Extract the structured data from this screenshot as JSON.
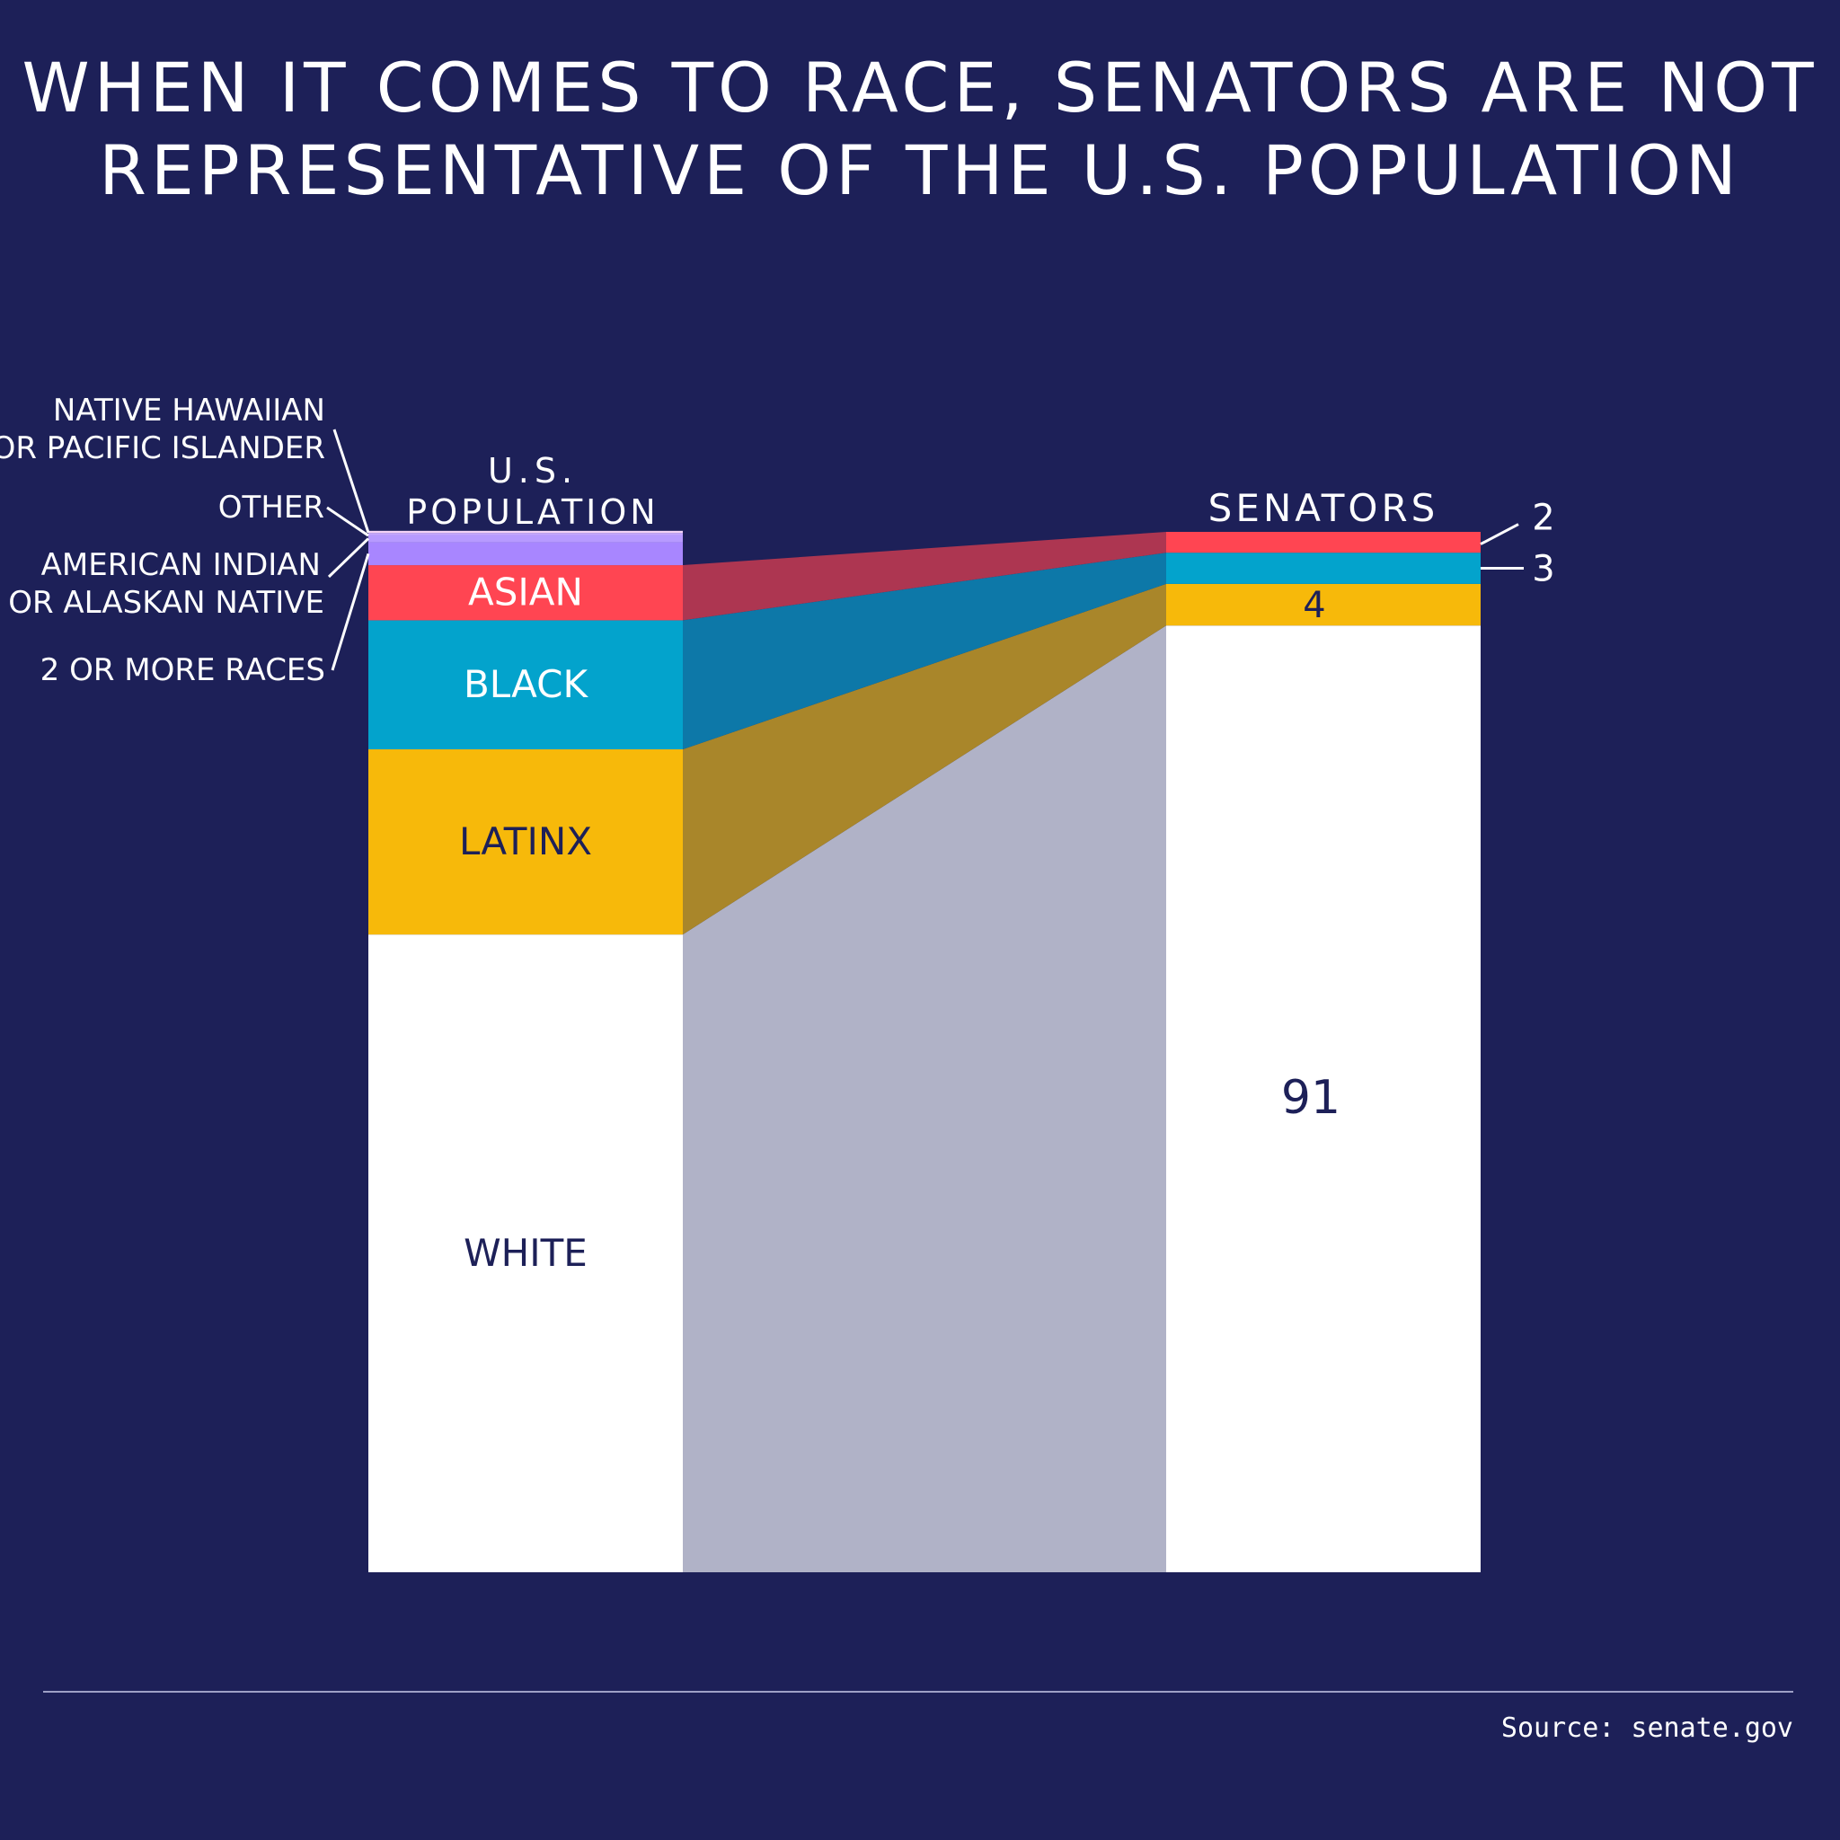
{
  "title": {
    "line1": "WHEN IT COMES TO RACE, SENATORS ARE NOT",
    "line2": "REPRESENTATIVE OF THE U.S. POPULATION"
  },
  "source": "Source: senate.gov",
  "colors": {
    "background": "#1d2058",
    "white": "#ffffff",
    "latinx": "#f7b90a",
    "black": "#03a3cc",
    "asian": "#ff4552",
    "american_indian": "#a886ff",
    "other": "#c7a8ff",
    "native_hawaiian": "#f3d3f6",
    "flow_white": "#b0b2c7",
    "flow_latinx": "#a9862a",
    "flow_black": "#0d78a8",
    "flow_asian": "#ad3651"
  },
  "chart_data": {
    "type": "bar",
    "stacked": true,
    "categories": [
      "U.S. POPULATION",
      "SENATORS"
    ],
    "category_labels": [
      "U.S.",
      "POPULATION",
      "SENATORS"
    ],
    "ylim": [
      0,
      100
    ],
    "grid": false,
    "legend": "labels on bars and left-side callouts",
    "series": [
      {
        "name": "WHITE",
        "values": [
          61.3,
          91
        ],
        "color": "#ffffff",
        "label_color": "#1d2058"
      },
      {
        "name": "LATINX",
        "values": [
          17.8,
          4
        ],
        "color": "#f7b90a",
        "label_color": "#1d2058"
      },
      {
        "name": "BLACK",
        "values": [
          12.4,
          3
        ],
        "color": "#03a3cc",
        "label_color": "#ffffff"
      },
      {
        "name": "ASIAN",
        "values": [
          5.3,
          2
        ],
        "color": "#ff4552",
        "label_color": "#ffffff"
      },
      {
        "name": "2 OR MORE RACES",
        "values": [
          2.2,
          0
        ],
        "color": "#a886ff"
      },
      {
        "name": "AMERICAN INDIAN OR ALASKAN NATIVE",
        "values": [
          0.7,
          0
        ],
        "color": "#b79aff"
      },
      {
        "name": "OTHER",
        "values": [
          0.2,
          0
        ],
        "color": "#c7a8ff"
      },
      {
        "name": "NATIVE HAWAIIAN OR PACIFIC ISLANDER",
        "values": [
          0.2,
          0
        ],
        "color": "#f3d3f6"
      }
    ],
    "callouts_left": [
      {
        "lines": [
          "NATIVE HAWAIIAN",
          "OR PACIFIC ISLANDER"
        ]
      },
      {
        "lines": [
          "OTHER"
        ]
      },
      {
        "lines": [
          "AMERICAN INDIAN",
          "OR ALASKAN NATIVE"
        ]
      },
      {
        "lines": [
          "2 OR MORE RACES"
        ]
      }
    ],
    "senator_value_labels": [
      "91",
      "4",
      "3",
      "2"
    ]
  }
}
